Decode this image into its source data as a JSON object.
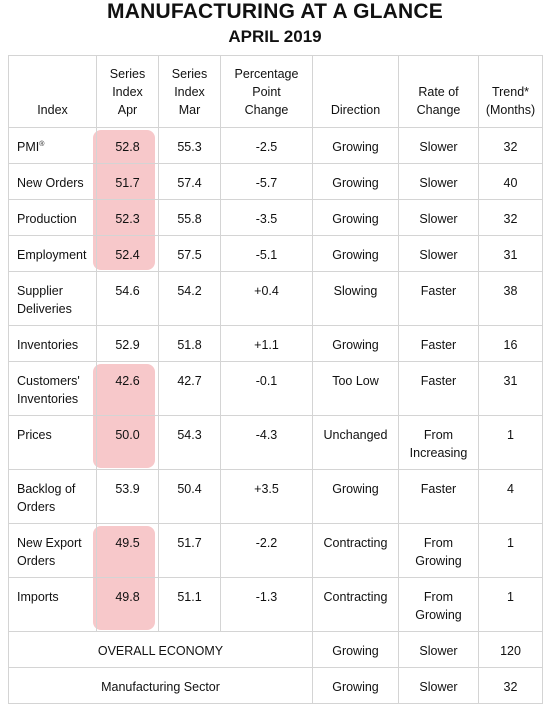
{
  "title": "MANUFACTURING AT A GLANCE",
  "subtitle": "APRIL 2019",
  "highlight_color": "#f4b5b8",
  "headers": {
    "index": "Index",
    "apr": [
      "Series",
      "Index",
      "Apr"
    ],
    "mar": [
      "Series",
      "Index",
      "Mar"
    ],
    "change": [
      "Percentage",
      "Point",
      "Change"
    ],
    "direction": "Direction",
    "rate": [
      "Rate of",
      "Change"
    ],
    "trend": [
      "Trend*",
      "(Months)"
    ]
  },
  "rows": [
    {
      "index": [
        "PMI"
      ],
      "sup": "®",
      "apr": "52.8",
      "mar": "55.3",
      "change": "-2.5",
      "direction": "Growing",
      "rate": [
        "Slower"
      ],
      "trend": "32"
    },
    {
      "index": [
        "New Orders"
      ],
      "sup": "",
      "apr": "51.7",
      "mar": "57.4",
      "change": "-5.7",
      "direction": "Growing",
      "rate": [
        "Slower"
      ],
      "trend": "40"
    },
    {
      "index": [
        "Production"
      ],
      "sup": "",
      "apr": "52.3",
      "mar": "55.8",
      "change": "-3.5",
      "direction": "Growing",
      "rate": [
        "Slower"
      ],
      "trend": "32"
    },
    {
      "index": [
        "Employment"
      ],
      "sup": "",
      "apr": "52.4",
      "mar": "57.5",
      "change": "-5.1",
      "direction": "Growing",
      "rate": [
        "Slower"
      ],
      "trend": "31"
    },
    {
      "index": [
        "Supplier",
        "Deliveries"
      ],
      "sup": "",
      "apr": "54.6",
      "mar": "54.2",
      "change": "+0.4",
      "direction": "Slowing",
      "rate": [
        "Faster"
      ],
      "trend": "38"
    },
    {
      "index": [
        "Inventories"
      ],
      "sup": "",
      "apr": "52.9",
      "mar": "51.8",
      "change": "+1.1",
      "direction": "Growing",
      "rate": [
        "Faster"
      ],
      "trend": "16"
    },
    {
      "index": [
        "Customers'",
        "Inventories"
      ],
      "sup": "",
      "apr": "42.6",
      "mar": "42.7",
      "change": "-0.1",
      "direction": "Too Low",
      "rate": [
        "Faster"
      ],
      "trend": "31"
    },
    {
      "index": [
        "Prices"
      ],
      "sup": "",
      "apr": "50.0",
      "mar": "54.3",
      "change": "-4.3",
      "direction": "Unchanged",
      "rate": [
        "From",
        "Increasing"
      ],
      "trend": "1"
    },
    {
      "index": [
        "Backlog of",
        "Orders"
      ],
      "sup": "",
      "apr": "53.9",
      "mar": "50.4",
      "change": "+3.5",
      "direction": "Growing",
      "rate": [
        "Faster"
      ],
      "trend": "4"
    },
    {
      "index": [
        "New Export",
        "Orders"
      ],
      "sup": "",
      "apr": "49.5",
      "mar": "51.7",
      "change": "-2.2",
      "direction": "Contracting",
      "rate": [
        "From",
        "Growing"
      ],
      "trend": "1"
    },
    {
      "index": [
        "Imports"
      ],
      "sup": "",
      "apr": "49.8",
      "mar": "51.1",
      "change": "-1.3",
      "direction": "Contracting",
      "rate": [
        "From",
        "Growing"
      ],
      "trend": "1"
    }
  ],
  "summary_rows": [
    {
      "label": "OVERALL ECONOMY",
      "direction": "Growing",
      "rate": "Slower",
      "trend": "120"
    },
    {
      "label": "Manufacturing Sector",
      "direction": "Growing",
      "rate": "Slower",
      "trend": "32"
    }
  ],
  "highlight_groups": [
    [
      0,
      3
    ],
    [
      6,
      7
    ],
    [
      9,
      10
    ]
  ],
  "chart_data": {
    "type": "table",
    "title": "MANUFACTURING AT A GLANCE",
    "subtitle": "APRIL 2019",
    "columns": [
      "Index",
      "Series Index Apr",
      "Series Index Mar",
      "Percentage Point Change",
      "Direction",
      "Rate of Change",
      "Trend* (Months)"
    ],
    "rows": [
      [
        "PMI®",
        52.8,
        55.3,
        -2.5,
        "Growing",
        "Slower",
        32
      ],
      [
        "New Orders",
        51.7,
        57.4,
        -5.7,
        "Growing",
        "Slower",
        40
      ],
      [
        "Production",
        52.3,
        55.8,
        -3.5,
        "Growing",
        "Slower",
        32
      ],
      [
        "Employment",
        52.4,
        57.5,
        -5.1,
        "Growing",
        "Slower",
        31
      ],
      [
        "Supplier Deliveries",
        54.6,
        54.2,
        0.4,
        "Slowing",
        "Faster",
        38
      ],
      [
        "Inventories",
        52.9,
        51.8,
        1.1,
        "Growing",
        "Faster",
        16
      ],
      [
        "Customers' Inventories",
        42.6,
        42.7,
        -0.1,
        "Too Low",
        "Faster",
        31
      ],
      [
        "Prices",
        50.0,
        54.3,
        -4.3,
        "Unchanged",
        "From Increasing",
        1
      ],
      [
        "Backlog of Orders",
        53.9,
        50.4,
        3.5,
        "Growing",
        "Faster",
        4
      ],
      [
        "New Export Orders",
        49.5,
        51.7,
        -2.2,
        "Contracting",
        "From Growing",
        1
      ],
      [
        "Imports",
        49.8,
        51.1,
        -1.3,
        "Contracting",
        "From Growing",
        1
      ],
      [
        "OVERALL ECONOMY",
        null,
        null,
        null,
        "Growing",
        "Slower",
        120
      ],
      [
        "Manufacturing Sector",
        null,
        null,
        null,
        "Growing",
        "Slower",
        32
      ]
    ]
  }
}
